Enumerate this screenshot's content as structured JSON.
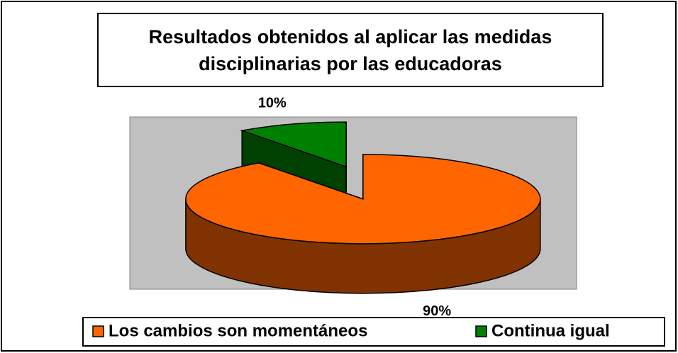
{
  "chart_data": {
    "type": "pie3d",
    "title": "Resultados obtenidos al aplicar las medidas disciplinarias por las educadoras",
    "categories": [
      "Los cambios son momentáneos",
      "Continua igual"
    ],
    "values": [
      90,
      10
    ],
    "value_labels": [
      "90%",
      "10%"
    ],
    "colors": [
      "#ff6600",
      "#008000"
    ],
    "legend": "bottom"
  }
}
